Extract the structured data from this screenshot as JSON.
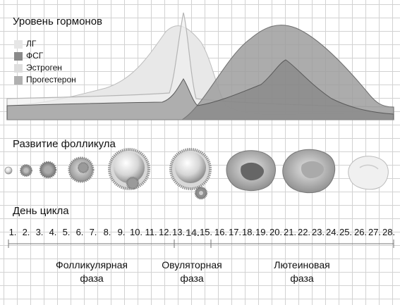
{
  "hormones": {
    "title": "Уровень гормонов",
    "legend": [
      {
        "key": "lh",
        "label": "ЛГ",
        "color": "#e6e6e6"
      },
      {
        "key": "fsh",
        "label": "ФСГ",
        "color": "#8a8a8a"
      },
      {
        "key": "estrogen",
        "label": "Эстроген",
        "color": "#dedede"
      },
      {
        "key": "progesterone",
        "label": "Прогестерон",
        "color": "#b0b0b0"
      }
    ]
  },
  "follicle": {
    "title": "Развитие фолликула"
  },
  "cycle": {
    "title": "День цикла",
    "days": [
      "1.",
      "2.",
      "3.",
      "4.",
      "5.",
      "6.",
      "7.",
      "8.",
      "9.",
      "10.",
      "11.",
      "12.",
      "13.",
      "14.",
      "15.",
      "16.",
      "17.",
      "18.",
      "19.",
      "20.",
      "21.",
      "22.",
      "23.",
      "24.",
      "25.",
      "26.",
      "27.",
      "28."
    ],
    "highlight_day": "14."
  },
  "phases": [
    {
      "line1": "Фолликулярная",
      "line2": "фаза"
    },
    {
      "line1": "Овуляторная",
      "line2": "фаза"
    },
    {
      "line1": "Лютеиновая",
      "line2": "фаза"
    }
  ]
}
